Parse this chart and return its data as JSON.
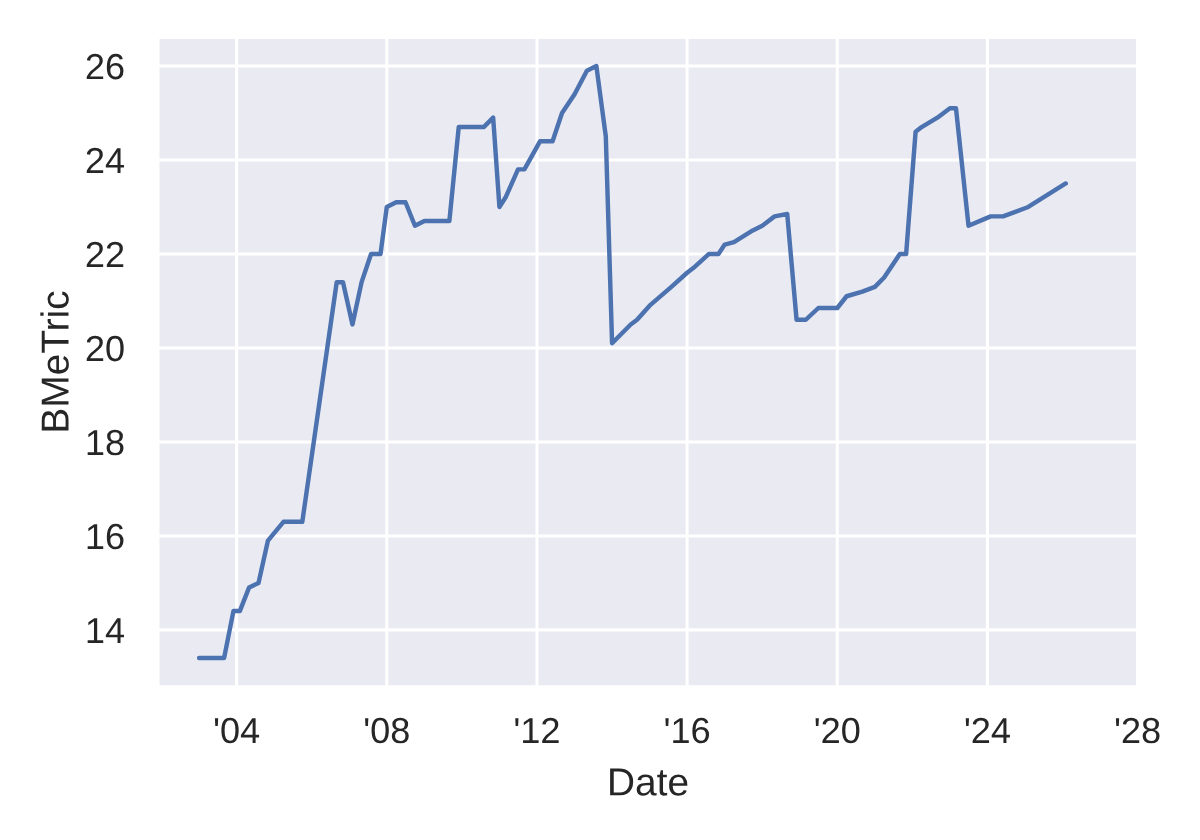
{
  "chart_data": {
    "type": "line",
    "xlabel": "Date",
    "ylabel": "BMeTric",
    "color": "#4c72b0",
    "x": [
      "2003-01",
      "2003-09",
      "2003-12",
      "2004-02",
      "2004-05",
      "2004-08",
      "2004-11",
      "2005-04",
      "2005-10",
      "2006-09",
      "2006-11",
      "2007-02",
      "2007-05",
      "2007-08",
      "2007-11",
      "2008-01",
      "2008-04",
      "2008-07",
      "2008-10",
      "2009-01",
      "2009-09",
      "2009-12",
      "2010-08",
      "2010-11",
      "2011-01",
      "2011-03",
      "2011-07",
      "2011-09",
      "2012-02",
      "2012-06",
      "2012-09",
      "2013-01",
      "2013-05",
      "2013-08",
      "2013-11",
      "2014-01",
      "2014-07",
      "2014-09",
      "2015-01",
      "2015-08",
      "2016-01",
      "2016-03",
      "2016-08",
      "2016-11",
      "2017-01",
      "2017-04",
      "2017-10",
      "2018-01",
      "2018-05",
      "2018-09",
      "2018-12",
      "2019-03",
      "2019-07",
      "2020-01",
      "2020-04",
      "2020-09",
      "2021-01",
      "2021-04",
      "2021-09",
      "2021-11",
      "2022-02",
      "2022-04",
      "2022-09",
      "2023-01",
      "2023-03",
      "2023-07",
      "2024-02",
      "2024-06",
      "2025-02",
      "2026-02"
    ],
    "values": [
      13.4,
      13.4,
      14.4,
      14.4,
      14.9,
      15.0,
      15.9,
      16.3,
      16.3,
      21.4,
      21.4,
      20.5,
      21.4,
      22.0,
      22.0,
      23.0,
      23.1,
      23.1,
      22.6,
      22.7,
      22.7,
      24.7,
      24.7,
      24.9,
      23.0,
      23.2,
      23.8,
      23.8,
      24.4,
      24.4,
      25.0,
      25.4,
      25.9,
      26.0,
      24.5,
      20.1,
      20.5,
      20.6,
      20.9,
      21.3,
      21.6,
      21.7,
      22.0,
      22.0,
      22.2,
      22.25,
      22.5,
      22.6,
      22.8,
      22.85,
      20.6,
      20.6,
      20.85,
      20.85,
      21.1,
      21.2,
      21.3,
      21.5,
      22.0,
      22.0,
      24.6,
      24.7,
      24.9,
      25.1,
      25.1,
      22.6,
      22.8,
      22.8,
      23.0,
      23.5
    ],
    "xlim": [
      "2001-12",
      "2028-01"
    ],
    "xticks": [
      {
        "value": "2004",
        "label": "'04"
      },
      {
        "value": "2008",
        "label": "'08"
      },
      {
        "value": "2012",
        "label": "'12"
      },
      {
        "value": "2016",
        "label": "'16"
      },
      {
        "value": "2020",
        "label": "'20"
      },
      {
        "value": "2024",
        "label": "'24"
      },
      {
        "value": "2028",
        "label": "'28"
      }
    ],
    "ylim": [
      12.8,
      26.6
    ],
    "yticks": [
      14,
      16,
      18,
      20,
      22,
      24,
      26
    ],
    "grid": true
  }
}
